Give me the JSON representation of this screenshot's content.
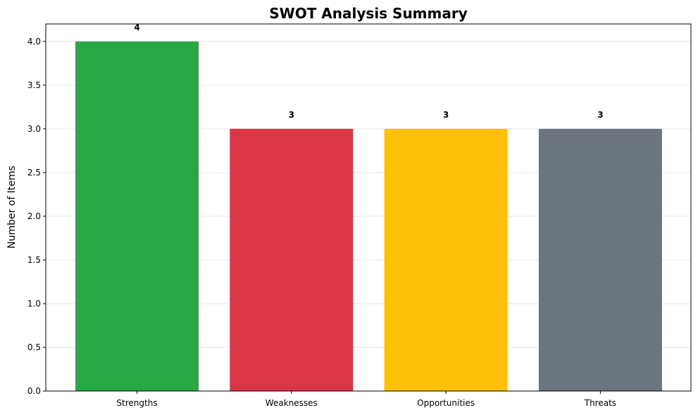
{
  "chart_data": {
    "type": "bar",
    "title": "SWOT Analysis Summary",
    "xlabel": "",
    "ylabel": "Number of Items",
    "categories": [
      "Strengths",
      "Weaknesses",
      "Opportunities",
      "Threats"
    ],
    "values": [
      4,
      3,
      3,
      3
    ],
    "data_labels": [
      "4",
      "3",
      "3",
      "3"
    ],
    "colors": [
      "#28a745",
      "#dc3545",
      "#ffc107",
      "#6c757d"
    ],
    "ylim": [
      0,
      4.2
    ],
    "yticks": [
      0.0,
      0.5,
      1.0,
      1.5,
      2.0,
      2.5,
      3.0,
      3.5,
      4.0
    ],
    "ytick_labels": [
      "0.0",
      "0.5",
      "1.0",
      "1.5",
      "2.0",
      "2.5",
      "3.0",
      "3.5",
      "4.0"
    ],
    "grid": "y",
    "legend": "none"
  }
}
